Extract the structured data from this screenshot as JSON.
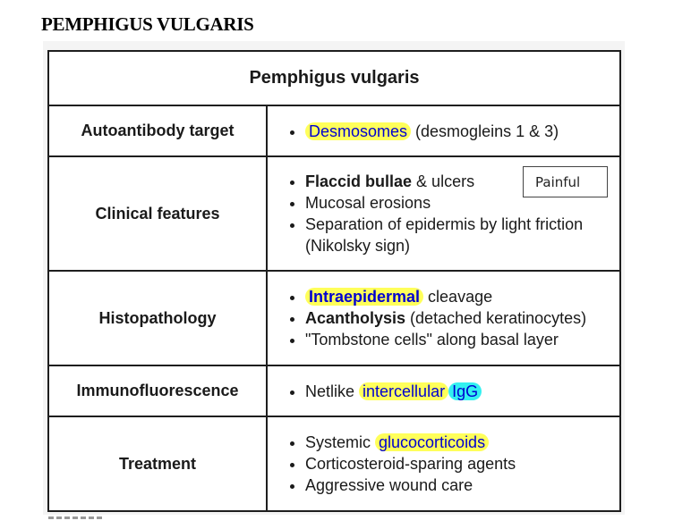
{
  "page_heading": "PEMPHIGUS VULGARIS",
  "table": {
    "title": "Pemphigus vulgaris",
    "rows": [
      {
        "label": "Autoantibody target",
        "items": [
          {
            "highlight": "Desmosomes",
            "rest": " (desmogleins 1 & 3)"
          }
        ]
      },
      {
        "label": "Clinical features",
        "items": [
          {
            "bold": "Flaccid bullae",
            "rest": " & ulcers"
          },
          {
            "text": "Mucosal erosions"
          },
          {
            "text": "Separation of epidermis by light friction (Nikolsky sign)"
          }
        ],
        "callout": "Painful"
      },
      {
        "label": "Histopathology",
        "items": [
          {
            "bold_highlight": "Intraepidermal",
            "rest": " cleavage"
          },
          {
            "bold": "Acantholysis",
            "rest": " (detached keratinocytes)"
          },
          {
            "text": "\"Tombstone cells\" along basal layer"
          }
        ]
      },
      {
        "label": "Immunofluorescence",
        "items": [
          {
            "prefix": "Netlike ",
            "highlight": "intercellular",
            "highlight2": "IgG"
          }
        ]
      },
      {
        "label": "Treatment",
        "items": [
          {
            "prefix": "Systemic ",
            "highlight": "glucocorticoids"
          },
          {
            "text": "Corticosteroid-sparing agents"
          },
          {
            "text": "Aggressive wound care"
          }
        ]
      }
    ]
  },
  "colors": {
    "highlight_yellow": "#ffff5a",
    "highlight_cyan": "#33f0f0",
    "highlight_text": "#0000d0",
    "border": "#1e1e1e"
  }
}
